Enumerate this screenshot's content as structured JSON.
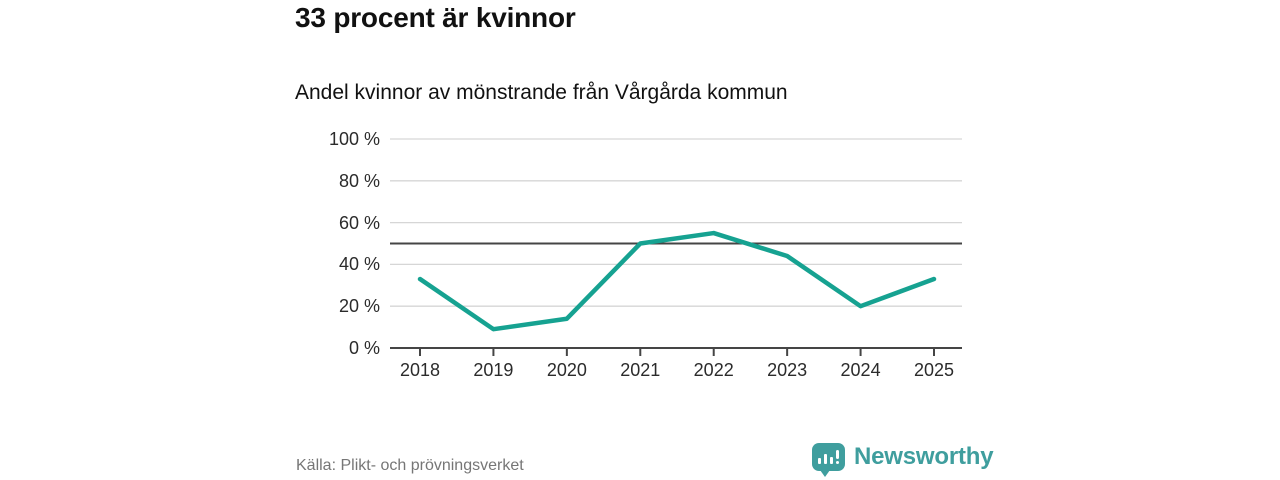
{
  "header": {
    "title": "33 procent är kvinnor",
    "subtitle": "Andel kvinnor av mönstrande från Vårgårda kommun"
  },
  "chart_data": {
    "type": "line",
    "title": "33 procent är kvinnor",
    "subtitle": "Andel kvinnor av mönstrande från Vårgårda kommun",
    "x": [
      "2018",
      "2019",
      "2020",
      "2021",
      "2022",
      "2023",
      "2024",
      "2025"
    ],
    "series": [
      {
        "name": "Andel kvinnor av mönstrande",
        "values": [
          33,
          9,
          14,
          50,
          55,
          44,
          20,
          33
        ],
        "color": "#16a291"
      }
    ],
    "ylim": [
      0,
      100
    ],
    "y_ticks": [
      {
        "value": 0,
        "label": "0 %"
      },
      {
        "value": 20,
        "label": "20 %"
      },
      {
        "value": 40,
        "label": "40 %"
      },
      {
        "value": 60,
        "label": "60 %"
      },
      {
        "value": 80,
        "label": "80 %"
      },
      {
        "value": 100,
        "label": "100 %"
      }
    ],
    "reference_line": {
      "value": 50
    },
    "grid": true,
    "legend": "none"
  },
  "footer": {
    "source": "Källa: Plikt- och prövningsverket",
    "brand": "Newsworthy"
  },
  "colors": {
    "line": "#16a291",
    "brand": "#3f9e9e",
    "grid_light": "#d6d6d6",
    "axis_dark": "#454545",
    "title_text": "#111111",
    "tick_text": "#2b2b2b",
    "muted_text": "#767676"
  }
}
